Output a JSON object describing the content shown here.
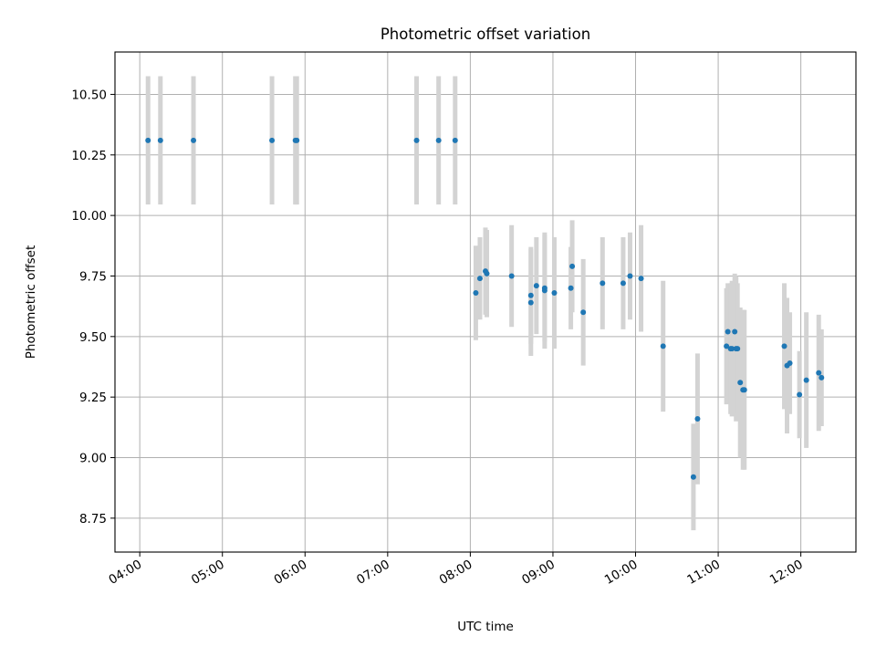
{
  "chart_data": {
    "type": "scatter",
    "title": "Photometric offset variation",
    "xlabel": "UTC time",
    "ylabel": "Photometric offset",
    "xlim": [
      "03:42",
      "12:40"
    ],
    "ylim": [
      8.61,
      10.675
    ],
    "x_ticks": [
      "04:00",
      "05:00",
      "06:00",
      "07:00",
      "08:00",
      "09:00",
      "10:00",
      "11:00",
      "12:00"
    ],
    "y_ticks": [
      8.75,
      9.0,
      9.25,
      9.5,
      9.75,
      10.0,
      10.25,
      10.5
    ],
    "y_tick_labels": [
      "8.75",
      "9.00",
      "9.25",
      "9.50",
      "9.75",
      "10.00",
      "10.25",
      "10.50"
    ],
    "grid": true,
    "colors": {
      "point": "#1f77b4",
      "errorbar": "#d3d3d3",
      "grid": "#b0b0b0"
    },
    "series": [
      {
        "x": [
          "04:06",
          "04:15",
          "04:39",
          "05:36",
          "05:53",
          "05:54",
          "07:21",
          "07:37",
          "07:49",
          "08:04",
          "08:07",
          "08:11",
          "08:12",
          "08:30",
          "08:44",
          "08:44",
          "08:48",
          "08:54",
          "08:54",
          "09:01",
          "09:13",
          "09:14",
          "09:22",
          "09:36",
          "09:51",
          "09:56",
          "10:04",
          "10:20",
          "10:42",
          "10:45",
          "11:06",
          "11:07",
          "11:09",
          "11:10",
          "11:12",
          "11:13",
          "11:14",
          "11:16",
          "11:18",
          "11:19",
          "11:48",
          "11:50",
          "11:52",
          "11:59",
          "12:04",
          "12:13",
          "12:15"
        ],
        "y": [
          10.31,
          10.31,
          10.31,
          10.31,
          10.31,
          10.31,
          10.31,
          10.31,
          10.31,
          9.68,
          9.74,
          9.77,
          9.76,
          9.75,
          9.64,
          9.67,
          9.71,
          9.69,
          9.7,
          9.68,
          9.7,
          9.79,
          9.6,
          9.72,
          9.72,
          9.75,
          9.74,
          9.46,
          8.92,
          9.16,
          9.46,
          9.52,
          9.45,
          9.45,
          9.52,
          9.45,
          9.45,
          9.31,
          9.28,
          9.28,
          9.46,
          9.38,
          9.39,
          9.26,
          9.32,
          9.35,
          9.33
        ],
        "yerr": [
          0.265,
          0.265,
          0.265,
          0.265,
          0.265,
          0.265,
          0.265,
          0.265,
          0.265,
          0.195,
          0.17,
          0.18,
          0.18,
          0.21,
          0.22,
          0.2,
          0.2,
          0.24,
          0.22,
          0.23,
          0.17,
          0.19,
          0.22,
          0.19,
          0.19,
          0.18,
          0.22,
          0.27,
          0.22,
          0.27,
          0.24,
          0.2,
          0.27,
          0.28,
          0.24,
          0.3,
          0.27,
          0.31,
          0.33,
          0.33,
          0.26,
          0.28,
          0.21,
          0.18,
          0.28,
          0.24,
          0.2
        ]
      }
    ]
  }
}
